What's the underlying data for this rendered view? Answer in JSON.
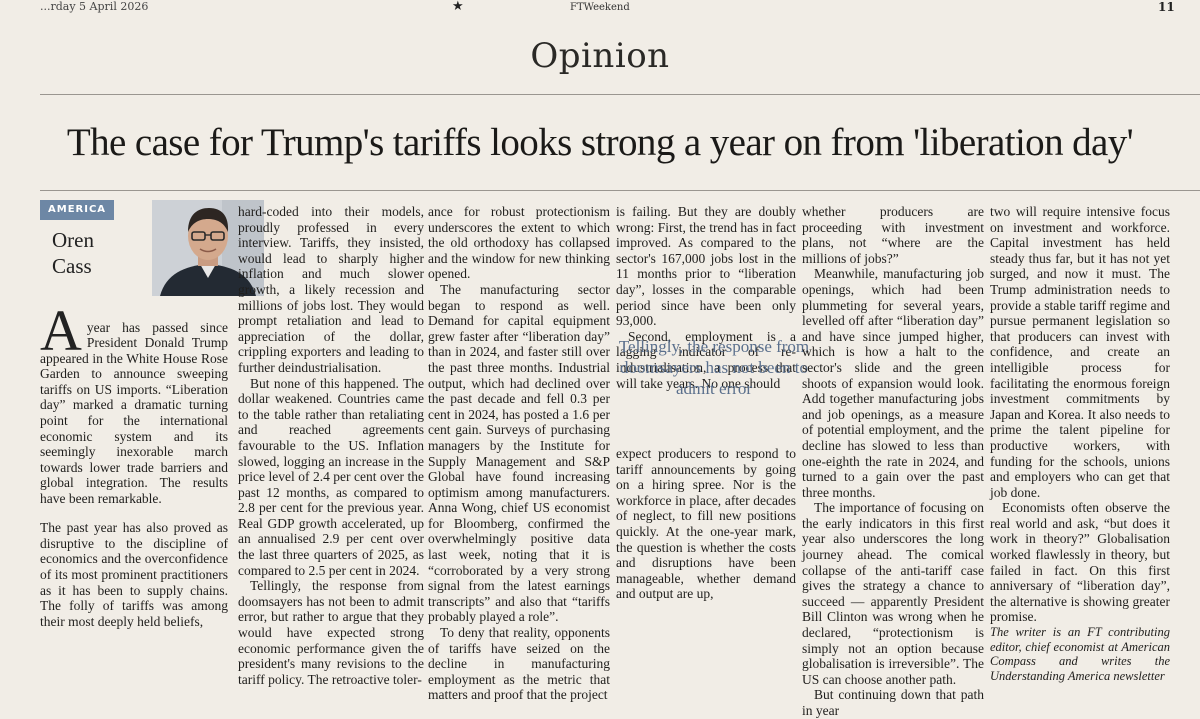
{
  "masthead": {
    "date": "...rday 5 April 2026",
    "publication": "FTWeekend",
    "page_number": "11"
  },
  "section": {
    "title": "Opinion"
  },
  "article": {
    "headline": "The case for Trump's tariffs looks strong a year on from 'liberation day'",
    "tag": "AMERICA",
    "author_first": "Oren",
    "author_last": "Cass",
    "pullquote": "Tellingly, the response from doomsayers has not been to admit error",
    "col1": {
      "dropcap": "A",
      "p1": "year has passed since President Donald Trump appeared in the White House Rose Garden to announce sweeping tariffs on US imports. “Liberation day” marked a dramatic turning point for the international economic system and its seemingly inexorable march towards lower trade barriers and global integration. The results have been remarkable.",
      "p2": "The past year has also proved as disruptive to the discipline of economics and the overconfidence of its most prominent practitioners as it has been to supply chains. The folly of tariffs was among their most deeply held beliefs,"
    },
    "col2": {
      "p1": "hard-coded into their models, proudly professed in every interview. Tariffs, they insisted, would lead to sharply higher inflation and much slower growth, a likely recession and millions of jobs lost. They would prompt retaliation and lead to appreciation of the dollar, crippling exporters and leading to further deindustrialisation.",
      "p2": "But none of this happened. The dollar weakened. Countries came to the table rather than retaliating and reached agreements favourable to the US. Inflation slowed, logging an increase in the price level of 2.4 per cent over the past 12 months, as compared to 2.8 per cent for the previous year. Real GDP growth accelerated, up an annualised 2.9 per cent over the last three quarters of 2025, as compared to 2.5 per cent in 2024.",
      "p3": "Tellingly, the response from doomsayers has not been to admit error, but rather to argue that they would have expected strong economic performance given the president's many revisions to the tariff policy. The retroactive toler-"
    },
    "col3": {
      "p1": "ance for robust protectionism underscores the extent to which the old orthodoxy has collapsed and the window for new thinking opened.",
      "p2": "The manufacturing sector began to respond as well. Demand for capital equipment grew faster after “liberation day” than in 2024, and faster still over the past three months. Industrial output, which had declined over the past decade and fell 0.3 per cent in 2024, has posted a 1.6 per cent gain. Surveys of purchasing managers by the Institute for Supply Management and S&P Global have found increasing optimism among manufacturers. Anna Wong, chief US economist for Bloomberg, confirmed the overwhelmingly positive data last week, noting that it is “corroborated by a very strong signal from the latest earnings transcripts” and also that “tariffs probably played a role”.",
      "p3": "To deny that reality, opponents of tariffs have seized on the decline in manufacturing employment as the metric that matters and proof that the project"
    },
    "col4": {
      "p1": "is failing. But they are doubly wrong: First, the trend has in fact improved. As compared to the sector's 167,000 jobs lost in the 11 months prior to “liberation day”, losses in the comparable period since have been only 93,000.",
      "p2": "Second, employment is a lagging indicator of re-industrialisation, a process that will take years. No one should",
      "p3": "expect producers to respond to tariff announcements by going on a hiring spree. Nor is the workforce in place, after decades of neglect, to fill new positions quickly. At the one-year mark, the question is whether the costs and disruptions have been manageable, whether demand and output are up,"
    },
    "col5": {
      "p1": "whether producers are proceeding with investment plans, not “where are the millions of jobs?”",
      "p2": "Meanwhile, manufacturing job openings, which had been plummeting for several years, levelled off after “liberation day” and have since jumped higher, which is how a halt to the sector's slide and the green shoots of expansion would look. Add together manufacturing jobs and job openings, as a measure of potential employment, and the decline has slowed to less than one-eighth the rate in 2024, and turned to a gain over the past three months.",
      "p3": "The importance of focusing on the early indicators in this first year also underscores the long journey ahead. The comical collapse of the anti-tariff case gives the strategy a chance to succeed — apparently President Bill Clinton was wrong when he declared, “protectionism is simply not an option because globalisation is irreversible”. The US can choose another path.",
      "p4": "But continuing down that path in year"
    },
    "col6": {
      "p1": "two will require intensive focus on investment and workforce. Capital investment has held steady thus far, but it has not yet surged, and now it must. The Trump administration needs to provide a stable tariff regime and pursue permanent legislation so that producers can invest with confidence, and create an intelligible process for facilitating the enormous foreign investment commitments by Japan and Korea. It also needs to prime the talent pipeline for productive workers, with funding for the schools, unions and employers who can get that job done.",
      "p2": "Economists often observe the real world and ask, “but does it work in theory?” Globalisation worked flawlessly in theory, but failed in fact. On this first anniversary of “liberation day”, the alternative is showing greater promise.",
      "signoff": "The writer is an FT contributing editor, chief economist at American Compass and writes the Understanding America newsletter"
    }
  },
  "colors": {
    "tag_bg": "#6d87a5",
    "pullquote": "#5a6f8c",
    "paper": "#f1ede6"
  }
}
